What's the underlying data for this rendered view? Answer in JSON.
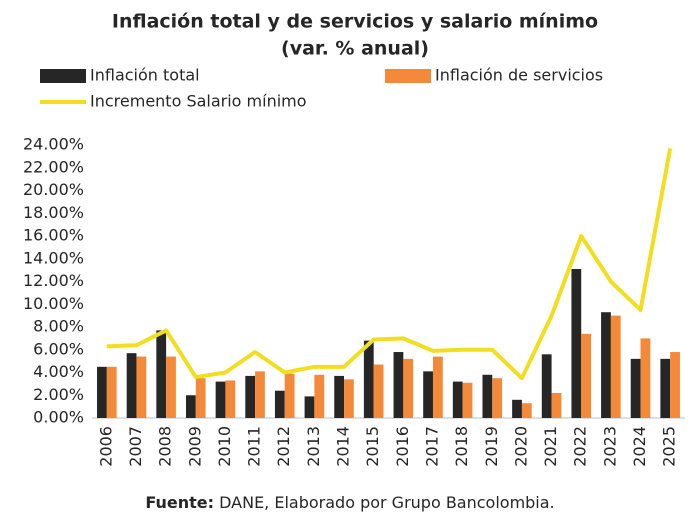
{
  "chart_data": {
    "type": "bar",
    "title": "Inflación total y de servicios y salario mínimo",
    "subtitle": "(var. % anual)",
    "categories": [
      "2006",
      "2007",
      "2008",
      "2009",
      "2010",
      "2011",
      "2012",
      "2013",
      "2014",
      "2015",
      "2016",
      "2017",
      "2018",
      "2019",
      "2020",
      "2021",
      "2022",
      "2023",
      "2024",
      "2025"
    ],
    "series": [
      {
        "name": "Inflación total",
        "color": "#262626",
        "type": "bar",
        "values": [
          4.5,
          5.7,
          7.7,
          2.0,
          3.2,
          3.7,
          2.4,
          1.9,
          3.7,
          6.8,
          5.8,
          4.1,
          3.2,
          3.8,
          1.6,
          5.6,
          13.1,
          9.3,
          5.2,
          5.2
        ]
      },
      {
        "name": "Inflación de servicios",
        "color": "#f5893a",
        "type": "bar",
        "values": [
          4.5,
          5.4,
          5.4,
          3.5,
          3.3,
          4.1,
          3.9,
          3.8,
          3.4,
          4.7,
          5.2,
          5.4,
          3.1,
          3.5,
          1.3,
          2.2,
          7.4,
          9.0,
          7.0,
          5.8
        ]
      },
      {
        "name": "Incremento Salario mínimo",
        "color": "#f2de1e",
        "type": "line",
        "values": [
          6.3,
          6.4,
          7.7,
          3.6,
          4.0,
          5.8,
          4.0,
          4.5,
          4.5,
          6.9,
          7.0,
          5.9,
          6.0,
          6.0,
          3.5,
          9.0,
          16.0,
          12.0,
          9.5,
          23.7
        ]
      }
    ],
    "ylim": [
      0,
      24
    ],
    "yticks": [
      {
        "value": 0,
        "label": "0.00%"
      },
      {
        "value": 2,
        "label": "2.00%"
      },
      {
        "value": 4,
        "label": "4.00%"
      },
      {
        "value": 6,
        "label": "6.00%"
      },
      {
        "value": 8,
        "label": "8.00%"
      },
      {
        "value": 10,
        "label": "10.00%"
      },
      {
        "value": 12,
        "label": "12.00%"
      },
      {
        "value": 14,
        "label": "14.00%"
      },
      {
        "value": 16,
        "label": "16.00%"
      },
      {
        "value": 18,
        "label": "18.00%"
      },
      {
        "value": 20,
        "label": "20.00%"
      },
      {
        "value": 22,
        "label": "22.00%"
      },
      {
        "value": 24,
        "label": "24.00%"
      }
    ],
    "grid": false,
    "source": {
      "label": "Fuente:",
      "text": "DANE, Elaborado por Grupo Bancolombia."
    }
  }
}
